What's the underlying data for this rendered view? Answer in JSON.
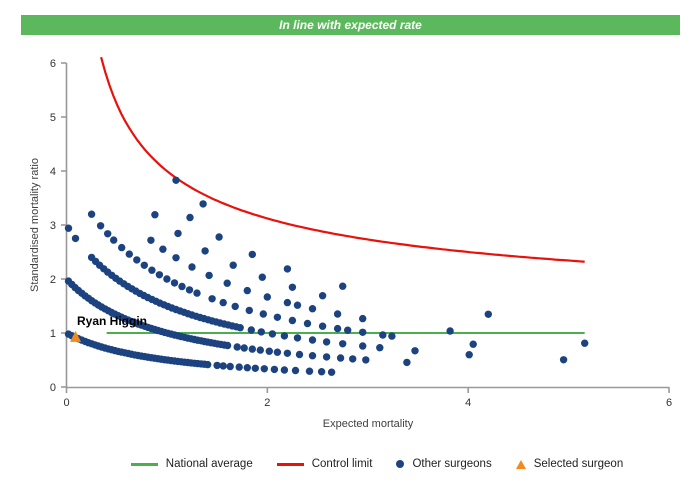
{
  "title_bar": {
    "text": "In line with expected rate"
  },
  "colors": {
    "title_bar_bg": "#5cb85c",
    "national_average": "#4cae4c",
    "control_limit": "#e8120d",
    "other_surgeons": "#1c4380",
    "selected_surgeon": "#f28a1f",
    "axis": "#999999"
  },
  "chart_data": {
    "type": "scatter",
    "title": "In line with expected rate",
    "xlabel": "Expected mortality",
    "ylabel": "Standardised mortality ratio",
    "xlim": [
      0,
      6
    ],
    "ylim": [
      0,
      6
    ],
    "x_ticks": [
      0,
      2,
      4,
      6
    ],
    "y_ticks": [
      0,
      1,
      2,
      3,
      4,
      5,
      6
    ],
    "grid": false,
    "legend_position": "bottom",
    "national_average": {
      "label": "National average",
      "y": 1,
      "x_start": 0.4,
      "x_end": 5.16,
      "color": "#4cae4c"
    },
    "control_limit": {
      "label": "Control limit",
      "formula": "smr = 1 + 3/sqrt(expected)",
      "x_start": 0.345,
      "x_end": 5.16,
      "y_end": 2.32,
      "color": "#e8120d"
    },
    "selected_surgeon": {
      "label": "Selected surgeon",
      "name": "Ryan Higgin",
      "x": 0.09,
      "y": 0.92,
      "color": "#f28a1f"
    },
    "other_surgeons": {
      "label": "Other surgeons",
      "color": "#1c4380",
      "model": "smr = deaths / (1 + expected); bands listed by observed deaths, x = expected mortality",
      "bands": [
        {
          "deaths": 1,
          "dense": [
            0.02,
            1.42,
            0.033
          ],
          "sparse": [
            1.5,
            1.56,
            1.63,
            1.72,
            1.8,
            1.88,
            1.97,
            2.07,
            2.17,
            2.28,
            2.42,
            2.54,
            2.64
          ]
        },
        {
          "deaths": 2,
          "dense": [
            0.02,
            1.62,
            0.033
          ],
          "sparse": [
            1.7,
            1.77,
            1.85,
            1.93,
            2.02,
            2.1,
            2.2,
            2.32,
            2.45,
            2.59,
            2.73,
            2.85,
            2.98,
            3.39
          ]
        },
        {
          "deaths": 3,
          "dense": [
            0.25,
            1.75,
            0.04
          ],
          "sparse": [
            0.02,
            0.09,
            1.84,
            1.94,
            2.05,
            2.17,
            2.3,
            2.45,
            2.59,
            2.75,
            2.95,
            3.12,
            3.47,
            4.01,
            4.95
          ]
        },
        {
          "deaths": 4,
          "dense": [
            0.55,
            1.35,
            0.075
          ],
          "sparse": [
            0.25,
            0.34,
            0.41,
            0.47,
            1.45,
            1.56,
            1.68,
            1.82,
            1.96,
            2.1,
            2.25,
            2.4,
            2.55,
            2.7,
            2.8,
            2.95,
            3.15,
            3.24,
            4.05
          ]
        },
        {
          "deaths": 5,
          "dense": null,
          "sparse": [
            0.84,
            0.96,
            1.09,
            1.25,
            1.42,
            1.6,
            1.8,
            2.0,
            2.2,
            2.3,
            2.45,
            2.7,
            2.95,
            3.82,
            5.16
          ]
        },
        {
          "deaths": 6,
          "dense": null,
          "sparse": [
            0.88,
            1.11,
            1.38,
            1.66,
            1.95,
            2.25,
            2.55
          ]
        },
        {
          "deaths": 7,
          "dense": null,
          "sparse": [
            1.23,
            1.52,
            1.85,
            2.2,
            2.75,
            4.2
          ]
        },
        {
          "deaths": 8,
          "dense": null,
          "sparse": [
            1.09,
            1.36
          ]
        }
      ]
    }
  },
  "legend": {
    "items": [
      {
        "label": "National average",
        "swatch": "line",
        "color": "#4cae4c"
      },
      {
        "label": "Control limit",
        "swatch": "line",
        "color": "#e8120d"
      },
      {
        "label": "Other surgeons",
        "swatch": "dot",
        "color": "#1c4380"
      },
      {
        "label": "Selected surgeon",
        "swatch": "triangle",
        "color": "#f28a1f"
      }
    ]
  }
}
